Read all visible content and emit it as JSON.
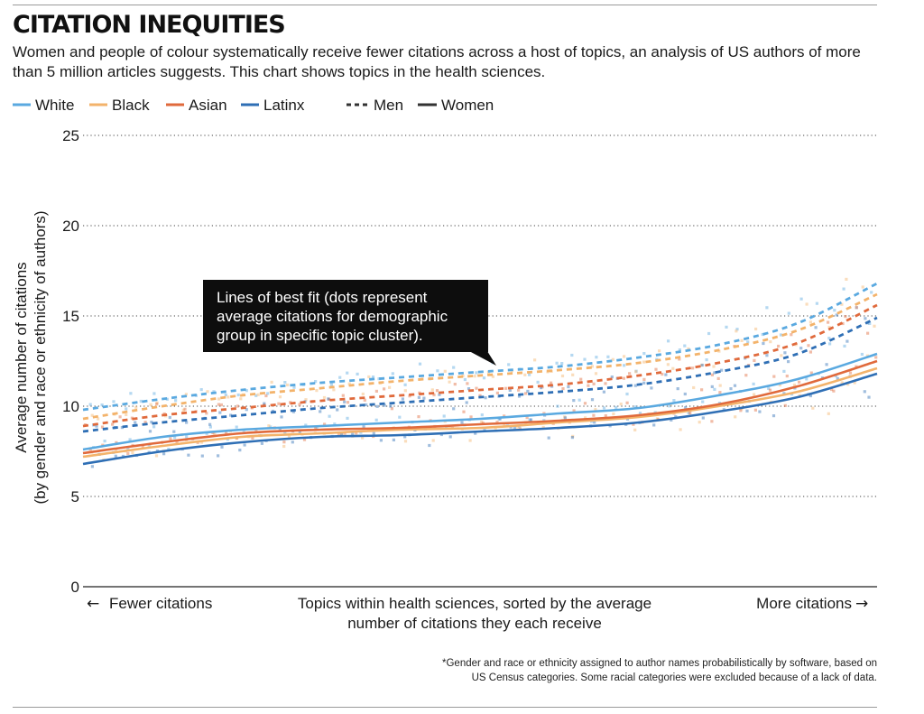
{
  "header": {
    "title": "CITATION INEQUITIES",
    "subtitle": "Women and people of colour systematically receive fewer citations across a host of topics, an analysis of US authors of more than 5 million articles suggests. This chart shows topics in the health sciences."
  },
  "footnote": {
    "line1": "*Gender and race or ethnicity assigned to author names probabilistically by software, based on",
    "line2": "US Census categories. Some racial categories were excluded because of a lack of data."
  },
  "colors": {
    "White": "#5aa9e0",
    "Black": "#f3b36b",
    "Asian": "#e06a3c",
    "Latinx": "#2f6fb5",
    "ink": "#333333"
  },
  "chart_data": {
    "type": "line",
    "title": "CITATION INEQUITIES",
    "ylabel_line1": "Average number of citations",
    "ylabel_line2": "(by gender and race or ethnicity of authors)",
    "xlabel_line1": "Topics within health sciences, sorted by the average",
    "xlabel_line2": "number of citations they each receive",
    "x_left_label": "Fewer citations",
    "x_right_label": "More citations",
    "left_arrow": "←",
    "right_arrow": "→",
    "ylim": [
      0,
      25
    ],
    "yticks": [
      "0",
      "5",
      "10",
      "15",
      "20",
      "25"
    ],
    "ytick_values": [
      0,
      5,
      10,
      15,
      20,
      25
    ],
    "grid": "horizontal dotted",
    "x": [
      0,
      0.1,
      0.2,
      0.3,
      0.4,
      0.5,
      0.6,
      0.7,
      0.8,
      0.9,
      1.0
    ],
    "legend": {
      "items": [
        "White",
        "Black",
        "Asian",
        "Latinx"
      ],
      "men": "Men",
      "women": "Women"
    },
    "annotation": "Lines of best fit (dots represent average citations for demographic group in specific topic cluster).",
    "annotation_lines": [
      "Lines of best fit (dots represent",
      "average citations for demographic",
      "group in specific topic cluster)."
    ],
    "series": [
      {
        "name": "White Men",
        "group": "White",
        "gender": "Men",
        "values": [
          9.8,
          10.4,
          10.9,
          11.3,
          11.6,
          11.9,
          12.2,
          12.7,
          13.4,
          14.6,
          16.8
        ]
      },
      {
        "name": "Black Men",
        "group": "Black",
        "gender": "Men",
        "values": [
          9.3,
          10.0,
          10.6,
          11.0,
          11.4,
          11.7,
          12.0,
          12.4,
          13.1,
          14.2,
          16.2
        ]
      },
      {
        "name": "Asian Men",
        "group": "Asian",
        "gender": "Men",
        "values": [
          8.9,
          9.5,
          9.9,
          10.3,
          10.6,
          10.9,
          11.2,
          11.7,
          12.4,
          13.5,
          15.6
        ]
      },
      {
        "name": "Latinx Men",
        "group": "Latinx",
        "gender": "Men",
        "values": [
          8.6,
          9.1,
          9.5,
          9.9,
          10.2,
          10.5,
          10.8,
          11.2,
          11.9,
          12.9,
          14.9
        ]
      },
      {
        "name": "White Women",
        "group": "White",
        "gender": "Women",
        "values": [
          7.6,
          8.3,
          8.7,
          8.9,
          9.1,
          9.3,
          9.6,
          9.9,
          10.6,
          11.5,
          12.9
        ]
      },
      {
        "name": "Black Women",
        "group": "Black",
        "gender": "Women",
        "values": [
          7.2,
          7.8,
          8.3,
          8.5,
          8.7,
          8.8,
          9.1,
          9.4,
          10.0,
          10.8,
          12.1
        ]
      },
      {
        "name": "Asian Women",
        "group": "Asian",
        "gender": "Women",
        "values": [
          7.4,
          8.0,
          8.5,
          8.7,
          8.8,
          9.0,
          9.2,
          9.5,
          10.1,
          11.1,
          12.5
        ]
      },
      {
        "name": "Latinx Women",
        "group": "Latinx",
        "gender": "Women",
        "values": [
          6.8,
          7.5,
          8.0,
          8.3,
          8.4,
          8.6,
          8.8,
          9.1,
          9.7,
          10.5,
          11.8
        ]
      }
    ]
  }
}
